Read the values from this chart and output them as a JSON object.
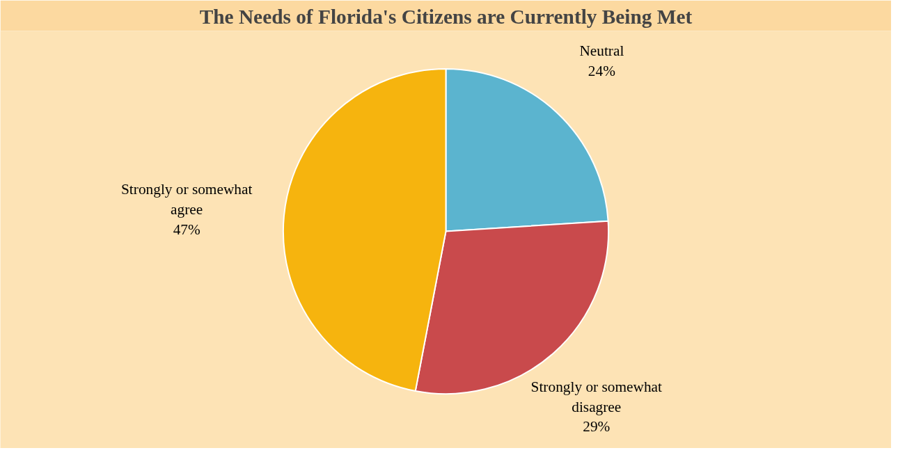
{
  "chart_data": {
    "type": "pie",
    "title": "The Needs of Florida's Citizens are Currently Being Met",
    "categories": [
      "Neutral",
      "Strongly or somewhat disagree",
      "Strongly or somewhat agree"
    ],
    "values": [
      24,
      29,
      47
    ],
    "colors": [
      "#5bb4cf",
      "#c94a4c",
      "#f6b40e"
    ],
    "data_labels": true,
    "value_labels": [
      "24%",
      "29%",
      "47%"
    ]
  }
}
